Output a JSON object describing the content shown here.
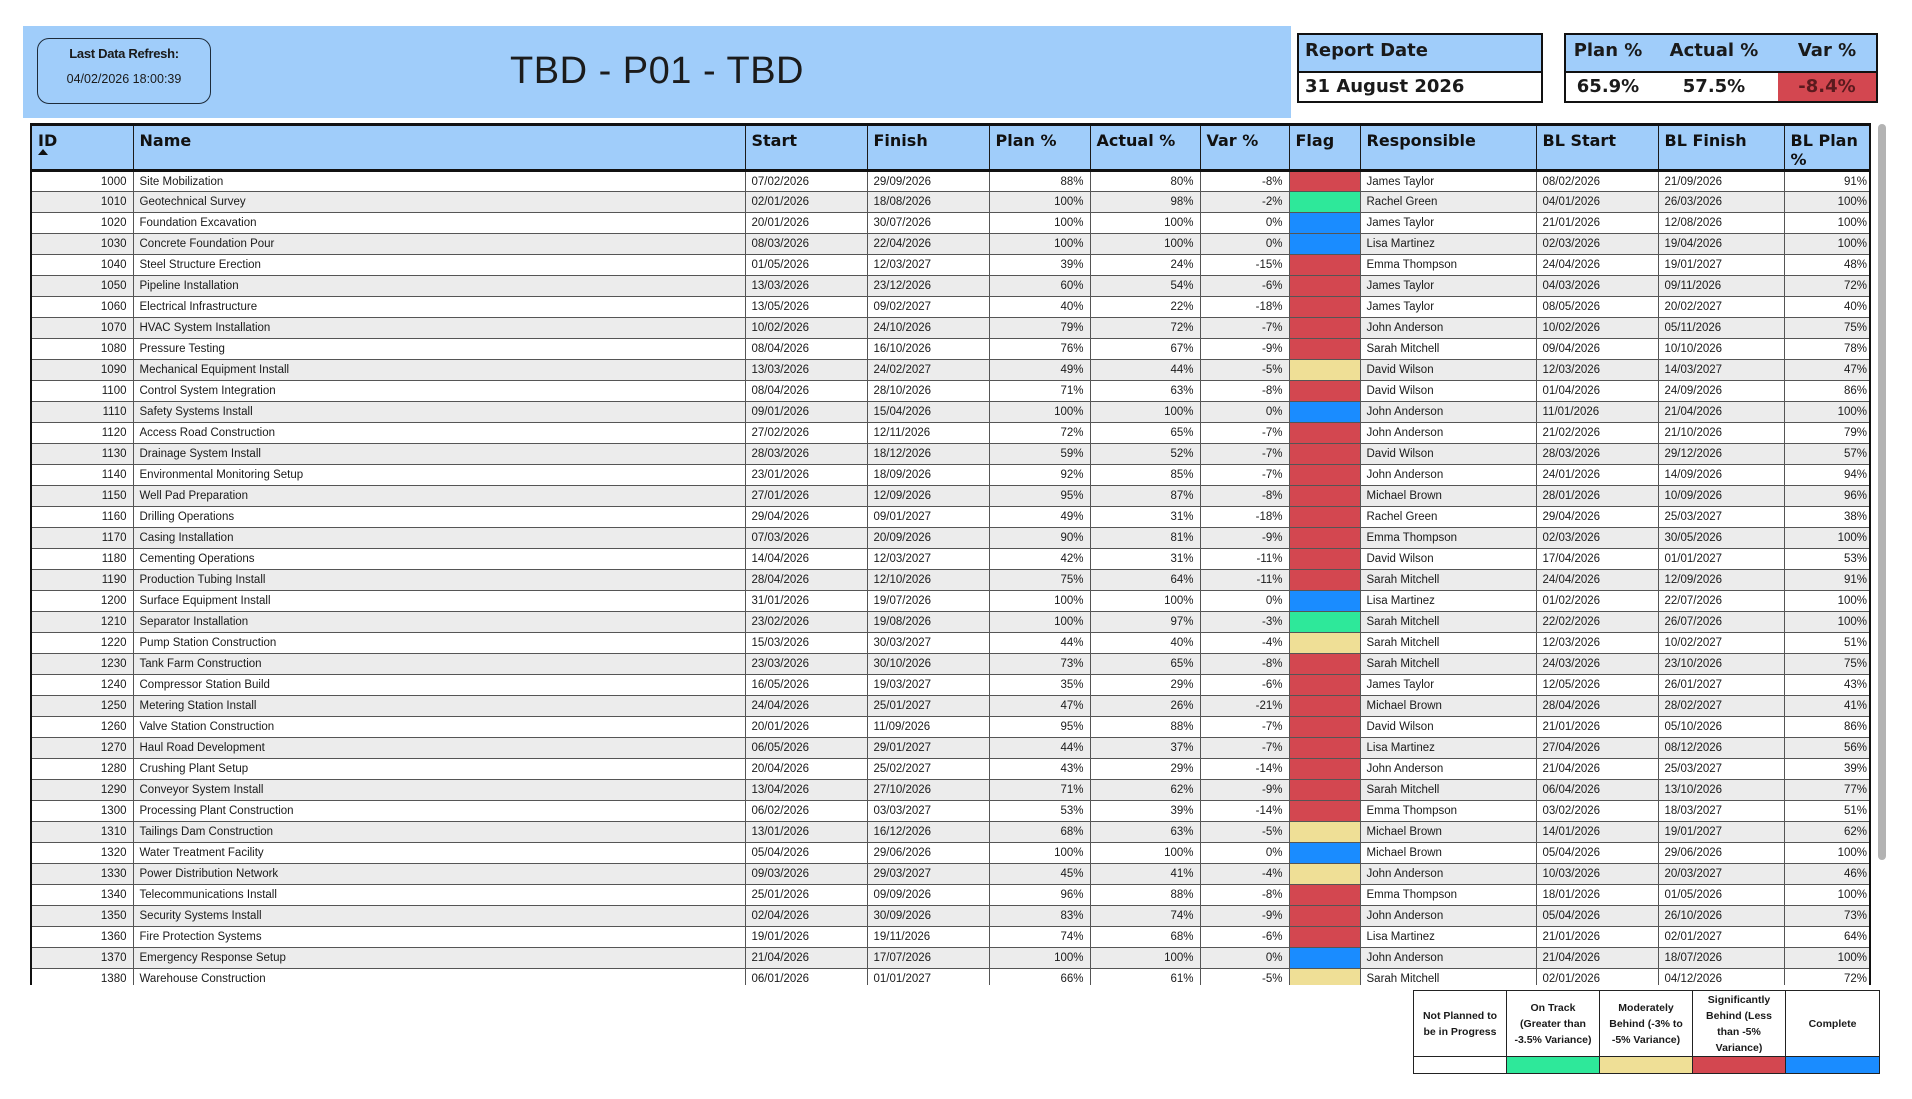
{
  "header": {
    "refresh_label": "Last Data Refresh:",
    "refresh_value": "04/02/2026 18:00:39",
    "title": "TBD - P01 - TBD"
  },
  "report_date": {
    "label": "Report Date",
    "value": "31 August 2026"
  },
  "kpis": {
    "plan_label": "Plan %",
    "actual_label": "Actual %",
    "var_label": "Var %",
    "plan_value": "65.9%",
    "actual_value": "57.5%",
    "var_value": "-8.4%",
    "var_color": "#d34750"
  },
  "table": {
    "columns": [
      "ID",
      "Name",
      "Start",
      "Finish",
      "Plan %",
      "Actual %",
      "Var %",
      "Flag",
      "Responsible",
      "BL Start",
      "BL Finish",
      "BL Plan %"
    ],
    "sort": {
      "column": "ID",
      "direction": "ascending"
    },
    "rows": [
      {
        "id": "1000",
        "name": "Site Mobilization",
        "start": "07/02/2026",
        "finish": "29/09/2026",
        "plan": "88%",
        "actual": "80%",
        "var": "-8%",
        "flag": "red",
        "responsible": "James Taylor",
        "bl_start": "08/02/2026",
        "bl_finish": "21/09/2026",
        "bl_plan": "91%"
      },
      {
        "id": "1010",
        "name": "Geotechnical Survey",
        "start": "02/01/2026",
        "finish": "18/08/2026",
        "plan": "100%",
        "actual": "98%",
        "var": "-2%",
        "flag": "green",
        "responsible": "Rachel Green",
        "bl_start": "04/01/2026",
        "bl_finish": "26/03/2026",
        "bl_plan": "100%"
      },
      {
        "id": "1020",
        "name": "Foundation Excavation",
        "start": "20/01/2026",
        "finish": "30/07/2026",
        "plan": "100%",
        "actual": "100%",
        "var": "0%",
        "flag": "blue",
        "responsible": "James Taylor",
        "bl_start": "21/01/2026",
        "bl_finish": "12/08/2026",
        "bl_plan": "100%"
      },
      {
        "id": "1030",
        "name": "Concrete Foundation Pour",
        "start": "08/03/2026",
        "finish": "22/04/2026",
        "plan": "100%",
        "actual": "100%",
        "var": "0%",
        "flag": "blue",
        "responsible": "Lisa Martinez",
        "bl_start": "02/03/2026",
        "bl_finish": "19/04/2026",
        "bl_plan": "100%"
      },
      {
        "id": "1040",
        "name": "Steel Structure Erection",
        "start": "01/05/2026",
        "finish": "12/03/2027",
        "plan": "39%",
        "actual": "24%",
        "var": "-15%",
        "flag": "red",
        "responsible": "Emma Thompson",
        "bl_start": "24/04/2026",
        "bl_finish": "19/01/2027",
        "bl_plan": "48%"
      },
      {
        "id": "1050",
        "name": "Pipeline Installation",
        "start": "13/03/2026",
        "finish": "23/12/2026",
        "plan": "60%",
        "actual": "54%",
        "var": "-6%",
        "flag": "red",
        "responsible": "James Taylor",
        "bl_start": "04/03/2026",
        "bl_finish": "09/11/2026",
        "bl_plan": "72%"
      },
      {
        "id": "1060",
        "name": "Electrical Infrastructure",
        "start": "13/05/2026",
        "finish": "09/02/2027",
        "plan": "40%",
        "actual": "22%",
        "var": "-18%",
        "flag": "red",
        "responsible": "James Taylor",
        "bl_start": "08/05/2026",
        "bl_finish": "20/02/2027",
        "bl_plan": "40%"
      },
      {
        "id": "1070",
        "name": "HVAC System Installation",
        "start": "10/02/2026",
        "finish": "24/10/2026",
        "plan": "79%",
        "actual": "72%",
        "var": "-7%",
        "flag": "red",
        "responsible": "John Anderson",
        "bl_start": "10/02/2026",
        "bl_finish": "05/11/2026",
        "bl_plan": "75%"
      },
      {
        "id": "1080",
        "name": "Pressure Testing",
        "start": "08/04/2026",
        "finish": "16/10/2026",
        "plan": "76%",
        "actual": "67%",
        "var": "-9%",
        "flag": "red",
        "responsible": "Sarah Mitchell",
        "bl_start": "09/04/2026",
        "bl_finish": "10/10/2026",
        "bl_plan": "78%"
      },
      {
        "id": "1090",
        "name": "Mechanical Equipment Install",
        "start": "13/03/2026",
        "finish": "24/02/2027",
        "plan": "49%",
        "actual": "44%",
        "var": "-5%",
        "flag": "yellow",
        "responsible": "David Wilson",
        "bl_start": "12/03/2026",
        "bl_finish": "14/03/2027",
        "bl_plan": "47%"
      },
      {
        "id": "1100",
        "name": "Control System Integration",
        "start": "08/04/2026",
        "finish": "28/10/2026",
        "plan": "71%",
        "actual": "63%",
        "var": "-8%",
        "flag": "red",
        "responsible": "David Wilson",
        "bl_start": "01/04/2026",
        "bl_finish": "24/09/2026",
        "bl_plan": "86%"
      },
      {
        "id": "1110",
        "name": "Safety Systems Install",
        "start": "09/01/2026",
        "finish": "15/04/2026",
        "plan": "100%",
        "actual": "100%",
        "var": "0%",
        "flag": "blue",
        "responsible": "John Anderson",
        "bl_start": "11/01/2026",
        "bl_finish": "21/04/2026",
        "bl_plan": "100%"
      },
      {
        "id": "1120",
        "name": "Access Road Construction",
        "start": "27/02/2026",
        "finish": "12/11/2026",
        "plan": "72%",
        "actual": "65%",
        "var": "-7%",
        "flag": "red",
        "responsible": "John Anderson",
        "bl_start": "21/02/2026",
        "bl_finish": "21/10/2026",
        "bl_plan": "79%"
      },
      {
        "id": "1130",
        "name": "Drainage System Install",
        "start": "28/03/2026",
        "finish": "18/12/2026",
        "plan": "59%",
        "actual": "52%",
        "var": "-7%",
        "flag": "red",
        "responsible": "David Wilson",
        "bl_start": "28/03/2026",
        "bl_finish": "29/12/2026",
        "bl_plan": "57%"
      },
      {
        "id": "1140",
        "name": "Environmental Monitoring Setup",
        "start": "23/01/2026",
        "finish": "18/09/2026",
        "plan": "92%",
        "actual": "85%",
        "var": "-7%",
        "flag": "red",
        "responsible": "John Anderson",
        "bl_start": "24/01/2026",
        "bl_finish": "14/09/2026",
        "bl_plan": "94%"
      },
      {
        "id": "1150",
        "name": "Well Pad Preparation",
        "start": "27/01/2026",
        "finish": "12/09/2026",
        "plan": "95%",
        "actual": "87%",
        "var": "-8%",
        "flag": "red",
        "responsible": "Michael Brown",
        "bl_start": "28/01/2026",
        "bl_finish": "10/09/2026",
        "bl_plan": "96%"
      },
      {
        "id": "1160",
        "name": "Drilling Operations",
        "start": "29/04/2026",
        "finish": "09/01/2027",
        "plan": "49%",
        "actual": "31%",
        "var": "-18%",
        "flag": "red",
        "responsible": "Rachel Green",
        "bl_start": "29/04/2026",
        "bl_finish": "25/03/2027",
        "bl_plan": "38%"
      },
      {
        "id": "1170",
        "name": "Casing Installation",
        "start": "07/03/2026",
        "finish": "20/09/2026",
        "plan": "90%",
        "actual": "81%",
        "var": "-9%",
        "flag": "red",
        "responsible": "Emma Thompson",
        "bl_start": "02/03/2026",
        "bl_finish": "30/05/2026",
        "bl_plan": "100%"
      },
      {
        "id": "1180",
        "name": "Cementing Operations",
        "start": "14/04/2026",
        "finish": "12/03/2027",
        "plan": "42%",
        "actual": "31%",
        "var": "-11%",
        "flag": "red",
        "responsible": "David Wilson",
        "bl_start": "17/04/2026",
        "bl_finish": "01/01/2027",
        "bl_plan": "53%"
      },
      {
        "id": "1190",
        "name": "Production Tubing Install",
        "start": "28/04/2026",
        "finish": "12/10/2026",
        "plan": "75%",
        "actual": "64%",
        "var": "-11%",
        "flag": "red",
        "responsible": "Sarah Mitchell",
        "bl_start": "24/04/2026",
        "bl_finish": "12/09/2026",
        "bl_plan": "91%"
      },
      {
        "id": "1200",
        "name": "Surface Equipment Install",
        "start": "31/01/2026",
        "finish": "19/07/2026",
        "plan": "100%",
        "actual": "100%",
        "var": "0%",
        "flag": "blue",
        "responsible": "Lisa Martinez",
        "bl_start": "01/02/2026",
        "bl_finish": "22/07/2026",
        "bl_plan": "100%"
      },
      {
        "id": "1210",
        "name": "Separator Installation",
        "start": "23/02/2026",
        "finish": "19/08/2026",
        "plan": "100%",
        "actual": "97%",
        "var": "-3%",
        "flag": "green",
        "responsible": "Sarah Mitchell",
        "bl_start": "22/02/2026",
        "bl_finish": "26/07/2026",
        "bl_plan": "100%"
      },
      {
        "id": "1220",
        "name": "Pump Station Construction",
        "start": "15/03/2026",
        "finish": "30/03/2027",
        "plan": "44%",
        "actual": "40%",
        "var": "-4%",
        "flag": "yellow",
        "responsible": "Sarah Mitchell",
        "bl_start": "12/03/2026",
        "bl_finish": "10/02/2027",
        "bl_plan": "51%"
      },
      {
        "id": "1230",
        "name": "Tank Farm Construction",
        "start": "23/03/2026",
        "finish": "30/10/2026",
        "plan": "73%",
        "actual": "65%",
        "var": "-8%",
        "flag": "red",
        "responsible": "Sarah Mitchell",
        "bl_start": "24/03/2026",
        "bl_finish": "23/10/2026",
        "bl_plan": "75%"
      },
      {
        "id": "1240",
        "name": "Compressor Station Build",
        "start": "16/05/2026",
        "finish": "19/03/2027",
        "plan": "35%",
        "actual": "29%",
        "var": "-6%",
        "flag": "red",
        "responsible": "James Taylor",
        "bl_start": "12/05/2026",
        "bl_finish": "26/01/2027",
        "bl_plan": "43%"
      },
      {
        "id": "1250",
        "name": "Metering Station Install",
        "start": "24/04/2026",
        "finish": "25/01/2027",
        "plan": "47%",
        "actual": "26%",
        "var": "-21%",
        "flag": "red",
        "responsible": "Michael Brown",
        "bl_start": "28/04/2026",
        "bl_finish": "28/02/2027",
        "bl_plan": "41%"
      },
      {
        "id": "1260",
        "name": "Valve Station Construction",
        "start": "20/01/2026",
        "finish": "11/09/2026",
        "plan": "95%",
        "actual": "88%",
        "var": "-7%",
        "flag": "red",
        "responsible": "David Wilson",
        "bl_start": "21/01/2026",
        "bl_finish": "05/10/2026",
        "bl_plan": "86%"
      },
      {
        "id": "1270",
        "name": "Haul Road Development",
        "start": "06/05/2026",
        "finish": "29/01/2027",
        "plan": "44%",
        "actual": "37%",
        "var": "-7%",
        "flag": "red",
        "responsible": "Lisa Martinez",
        "bl_start": "27/04/2026",
        "bl_finish": "08/12/2026",
        "bl_plan": "56%"
      },
      {
        "id": "1280",
        "name": "Crushing Plant Setup",
        "start": "20/04/2026",
        "finish": "25/02/2027",
        "plan": "43%",
        "actual": "29%",
        "var": "-14%",
        "flag": "red",
        "responsible": "John Anderson",
        "bl_start": "21/04/2026",
        "bl_finish": "25/03/2027",
        "bl_plan": "39%"
      },
      {
        "id": "1290",
        "name": "Conveyor System Install",
        "start": "13/04/2026",
        "finish": "27/10/2026",
        "plan": "71%",
        "actual": "62%",
        "var": "-9%",
        "flag": "red",
        "responsible": "Sarah Mitchell",
        "bl_start": "06/04/2026",
        "bl_finish": "13/10/2026",
        "bl_plan": "77%"
      },
      {
        "id": "1300",
        "name": "Processing Plant Construction",
        "start": "06/02/2026",
        "finish": "03/03/2027",
        "plan": "53%",
        "actual": "39%",
        "var": "-14%",
        "flag": "red",
        "responsible": "Emma Thompson",
        "bl_start": "03/02/2026",
        "bl_finish": "18/03/2027",
        "bl_plan": "51%"
      },
      {
        "id": "1310",
        "name": "Tailings Dam Construction",
        "start": "13/01/2026",
        "finish": "16/12/2026",
        "plan": "68%",
        "actual": "63%",
        "var": "-5%",
        "flag": "yellow",
        "responsible": "Michael Brown",
        "bl_start": "14/01/2026",
        "bl_finish": "19/01/2027",
        "bl_plan": "62%"
      },
      {
        "id": "1320",
        "name": "Water Treatment Facility",
        "start": "05/04/2026",
        "finish": "29/06/2026",
        "plan": "100%",
        "actual": "100%",
        "var": "0%",
        "flag": "blue",
        "responsible": "Michael Brown",
        "bl_start": "05/04/2026",
        "bl_finish": "29/06/2026",
        "bl_plan": "100%"
      },
      {
        "id": "1330",
        "name": "Power Distribution Network",
        "start": "09/03/2026",
        "finish": "29/03/2027",
        "plan": "45%",
        "actual": "41%",
        "var": "-4%",
        "flag": "yellow",
        "responsible": "John Anderson",
        "bl_start": "10/03/2026",
        "bl_finish": "20/03/2027",
        "bl_plan": "46%"
      },
      {
        "id": "1340",
        "name": "Telecommunications Install",
        "start": "25/01/2026",
        "finish": "09/09/2026",
        "plan": "96%",
        "actual": "88%",
        "var": "-8%",
        "flag": "red",
        "responsible": "Emma Thompson",
        "bl_start": "18/01/2026",
        "bl_finish": "01/05/2026",
        "bl_plan": "100%"
      },
      {
        "id": "1350",
        "name": "Security Systems Install",
        "start": "02/04/2026",
        "finish": "30/09/2026",
        "plan": "83%",
        "actual": "74%",
        "var": "-9%",
        "flag": "red",
        "responsible": "John Anderson",
        "bl_start": "05/04/2026",
        "bl_finish": "26/10/2026",
        "bl_plan": "73%"
      },
      {
        "id": "1360",
        "name": "Fire Protection Systems",
        "start": "19/01/2026",
        "finish": "19/11/2026",
        "plan": "74%",
        "actual": "68%",
        "var": "-6%",
        "flag": "red",
        "responsible": "Lisa Martinez",
        "bl_start": "21/01/2026",
        "bl_finish": "02/01/2027",
        "bl_plan": "64%"
      },
      {
        "id": "1370",
        "name": "Emergency Response Setup",
        "start": "21/04/2026",
        "finish": "17/07/2026",
        "plan": "100%",
        "actual": "100%",
        "var": "0%",
        "flag": "blue",
        "responsible": "John Anderson",
        "bl_start": "21/04/2026",
        "bl_finish": "18/07/2026",
        "bl_plan": "100%"
      },
      {
        "id": "1380",
        "name": "Warehouse Construction",
        "start": "06/01/2026",
        "finish": "01/01/2027",
        "plan": "66%",
        "actual": "61%",
        "var": "-5%",
        "flag": "yellow",
        "responsible": "Sarah Mitchell",
        "bl_start": "02/01/2026",
        "bl_finish": "04/12/2026",
        "bl_plan": "72%"
      },
      {
        "id": "",
        "name": "",
        "start": "",
        "finish": "",
        "plan": "",
        "actual": "",
        "var": "",
        "flag": "red",
        "responsible": "",
        "bl_start": "",
        "bl_finish": "",
        "bl_plan": ""
      }
    ]
  },
  "flag_colors": {
    "red": "#d34750",
    "green": "#2ee89a",
    "yellow": "#efdf96",
    "blue": "#1a8cff",
    "white": "#ffffff"
  },
  "legend": [
    {
      "label": "Not Planned to be in Progress",
      "color": "#ffffff"
    },
    {
      "label": "On Track (Greater than -3.5% Variance)",
      "color": "#2ee89a"
    },
    {
      "label": "Moderately Behind (-3% to -5% Variance)",
      "color": "#efdf96"
    },
    {
      "label": "Significantly Behind (Less than -5% Variance)",
      "color": "#d34750"
    },
    {
      "label": "Complete",
      "color": "#1a8cff"
    }
  ]
}
